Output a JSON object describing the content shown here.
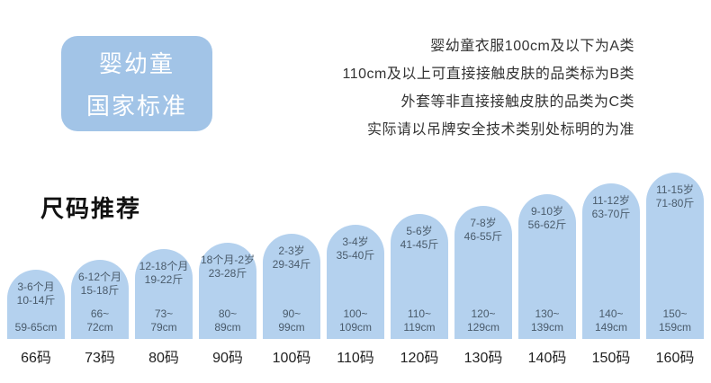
{
  "header": {
    "badge": {
      "line1": "婴幼童",
      "line2": "国家标准"
    },
    "notes": [
      "婴幼童衣服100cm及以下为A类",
      "110cm及以上可直接接触皮肤的品类标为B类",
      "外套等非直接接触皮肤的品类为C类",
      "实际请以吊牌安全技术类别处标明的为准"
    ]
  },
  "size_section": {
    "title": "尺码推荐",
    "sizes": [
      {
        "label": "66码",
        "age": "3-6个月",
        "weight": "10-14斤",
        "height_min": "59-65cm",
        "height_max": ""
      },
      {
        "label": "73码",
        "age": "6-12个月",
        "weight": "15-18斤",
        "height_min": "66~",
        "height_max": "72cm"
      },
      {
        "label": "80码",
        "age": "12-18个月",
        "weight": "19-22斤",
        "height_min": "73~",
        "height_max": "79cm"
      },
      {
        "label": "90码",
        "age": "18个月-2岁",
        "weight": "23-28斤",
        "height_min": "80~",
        "height_max": "89cm"
      },
      {
        "label": "100码",
        "age": "2-3岁",
        "weight": "29-34斤",
        "height_min": "90~",
        "height_max": "99cm"
      },
      {
        "label": "110码",
        "age": "3-4岁",
        "weight": "35-40斤",
        "height_min": "100~",
        "height_max": "109cm"
      },
      {
        "label": "120码",
        "age": "5-6岁",
        "weight": "41-45斤",
        "height_min": "110~",
        "height_max": "119cm"
      },
      {
        "label": "130码",
        "age": "7-8岁",
        "weight": "46-55斤",
        "height_min": "120~",
        "height_max": "129cm"
      },
      {
        "label": "140码",
        "age": "9-10岁",
        "weight": "56-62斤",
        "height_min": "130~",
        "height_max": "139cm"
      },
      {
        "label": "150码",
        "age": "11-12岁",
        "weight": "63-70斤",
        "height_min": "140~",
        "height_max": "149cm"
      },
      {
        "label": "160码",
        "age": "11-15岁",
        "weight": "71-80斤",
        "height_min": "150~",
        "height_max": "159cm"
      }
    ],
    "colors": {
      "badge_bg": "#a2c4e7",
      "arch_bg": "#b4d1ee",
      "arch_text": "#4a5b6b"
    }
  }
}
